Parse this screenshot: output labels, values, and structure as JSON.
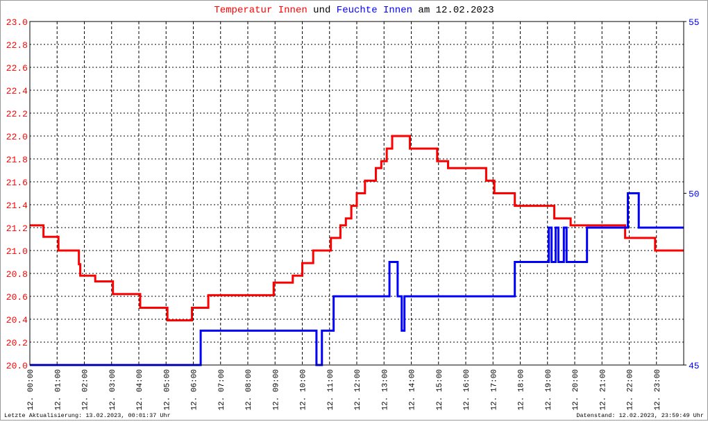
{
  "chart_data": {
    "type": "line",
    "title_parts": [
      {
        "text": "Temperatur Innen",
        "color": "#ff0000"
      },
      {
        "text": "und",
        "color": "#000000"
      },
      {
        "text": "Feuchte Innen",
        "color": "#0000ff"
      },
      {
        "text": "am 12.02.2023",
        "color": "#000000"
      }
    ],
    "footer_left": "Letzte Aktualisierung: 13.02.2023, 00:01:37 Uhr",
    "footer_right": "Datenstand: 12.02.2023, 23:59:49 Uhr",
    "xlim": [
      0,
      24
    ],
    "xticks": [
      {
        "value": 0,
        "label": "12. 00:00"
      },
      {
        "value": 1,
        "label": "12. 01:00"
      },
      {
        "value": 2,
        "label": "12. 02:00"
      },
      {
        "value": 3,
        "label": "12. 03:00"
      },
      {
        "value": 4,
        "label": "12. 04:00"
      },
      {
        "value": 5,
        "label": "12. 05:00"
      },
      {
        "value": 6,
        "label": "12. 06:00"
      },
      {
        "value": 7,
        "label": "12. 07:00"
      },
      {
        "value": 8,
        "label": "12. 08:00"
      },
      {
        "value": 9,
        "label": "12. 09:00"
      },
      {
        "value": 10,
        "label": "12. 10:00"
      },
      {
        "value": 11,
        "label": "12. 11:00"
      },
      {
        "value": 12,
        "label": "12. 12:00"
      },
      {
        "value": 13,
        "label": "12. 13:00"
      },
      {
        "value": 14,
        "label": "12. 14:00"
      },
      {
        "value": 15,
        "label": "12. 15:00"
      },
      {
        "value": 16,
        "label": "12. 16:00"
      },
      {
        "value": 17,
        "label": "12. 17:00"
      },
      {
        "value": 18,
        "label": "12. 18:00"
      },
      {
        "value": 19,
        "label": "12. 19:00"
      },
      {
        "value": 20,
        "label": "12. 20:00"
      },
      {
        "value": 21,
        "label": "12. 21:00"
      },
      {
        "value": 22,
        "label": "12. 22:00"
      },
      {
        "value": 23,
        "label": "12. 23:00"
      }
    ],
    "ylim": [
      20.0,
      23.0
    ],
    "yticks": [
      {
        "value": 20.0,
        "label": "20.0"
      },
      20.2,
      20.4,
      20.6,
      20.8,
      {
        "value": 21.0,
        "label": "21.0"
      },
      21.2,
      21.4,
      21.6,
      21.8,
      {
        "value": 22.0,
        "label": "22.0"
      },
      22.2,
      22.4,
      22.6,
      22.8,
      {
        "value": 23.0,
        "label": "23.0"
      }
    ],
    "y2lim": [
      45,
      55
    ],
    "y2ticks": [
      45,
      50,
      55
    ],
    "grid": true,
    "series": [
      {
        "name": "Temperatur Innen",
        "color": "#ff0000",
        "axis": "y",
        "x": [
          0,
          0.5,
          0.5,
          1.05,
          1.05,
          1.8,
          1.8,
          1.85,
          1.85,
          2.4,
          2.4,
          3.05,
          3.05,
          4.05,
          4.05,
          5.05,
          5.05,
          5.95,
          5.95,
          6.55,
          6.55,
          8.95,
          8.95,
          9.65,
          9.65,
          10.0,
          10.0,
          10.4,
          10.4,
          11.05,
          11.05,
          11.4,
          11.4,
          11.6,
          11.6,
          11.8,
          11.8,
          12.0,
          12.0,
          12.3,
          12.3,
          12.7,
          12.7,
          12.9,
          12.9,
          13.1,
          13.1,
          13.3,
          13.3,
          13.95,
          13.95,
          14.95,
          14.95,
          15.35,
          15.35,
          16.75,
          16.75,
          17.05,
          17.05,
          17.8,
          17.8,
          19.25,
          19.25,
          19.85,
          19.85,
          21.85,
          21.85,
          22.95,
          22.95,
          24
        ],
        "values": [
          21.22,
          21.22,
          21.12,
          21.12,
          21.0,
          21.0,
          20.88,
          20.88,
          20.78,
          20.78,
          20.73,
          20.73,
          20.62,
          20.62,
          20.5,
          20.5,
          20.39,
          20.39,
          20.5,
          20.5,
          20.61,
          20.61,
          20.72,
          20.72,
          20.78,
          20.78,
          20.89,
          20.89,
          21.0,
          21.0,
          21.11,
          21.11,
          21.22,
          21.22,
          21.28,
          21.28,
          21.39,
          21.39,
          21.5,
          21.5,
          21.61,
          21.61,
          21.72,
          21.72,
          21.78,
          21.78,
          21.89,
          21.89,
          22.0,
          22.0,
          21.89,
          21.89,
          21.78,
          21.78,
          21.72,
          21.72,
          21.61,
          21.61,
          21.5,
          21.5,
          21.39,
          21.39,
          21.28,
          21.28,
          21.22,
          21.22,
          21.11,
          21.11,
          21.0,
          21.0
        ]
      },
      {
        "name": "Feuchte Innen",
        "color": "#0000ff",
        "axis": "y2",
        "x": [
          0,
          6.27,
          6.27,
          10.52,
          10.52,
          10.72,
          10.72,
          11.15,
          11.15,
          13.2,
          13.2,
          13.5,
          13.5,
          13.65,
          13.65,
          13.75,
          13.75,
          17.8,
          17.8,
          19.05,
          19.05,
          19.15,
          19.15,
          19.3,
          19.3,
          19.4,
          19.4,
          19.6,
          19.6,
          19.7,
          19.7,
          19.85,
          19.85,
          20.45,
          20.45,
          21.95,
          21.95,
          22.35,
          22.35,
          24
        ],
        "values": [
          45,
          45,
          46,
          46,
          45,
          45,
          46,
          46,
          47,
          47,
          48,
          48,
          47,
          47,
          46,
          46,
          47,
          47,
          48,
          48,
          49,
          49,
          48,
          48,
          49,
          49,
          48,
          48,
          49,
          49,
          48,
          48,
          48,
          48,
          49,
          49,
          50,
          50,
          49,
          49
        ]
      }
    ]
  }
}
